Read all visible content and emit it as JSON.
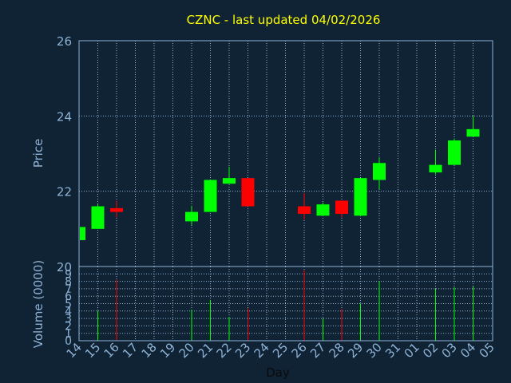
{
  "chart_data": {
    "type": "candlestick",
    "title": "CZNC - last updated 04/02/2026",
    "xlabel": "Day",
    "price_panel": {
      "ylabel": "Price",
      "ylim": [
        20,
        26
      ],
      "yticks": [
        "20",
        "22",
        "24",
        "26"
      ]
    },
    "volume_panel": {
      "ylabel": "Volume (0000)",
      "ylim": [
        0,
        10
      ],
      "yticks": [
        "0",
        "1",
        "2",
        "3",
        "4",
        "5",
        "6",
        "7",
        "8",
        "9",
        "10"
      ]
    },
    "x_labels": [
      "14",
      "15",
      "16",
      "17",
      "18",
      "19",
      "20",
      "21",
      "22",
      "23",
      "24",
      "25",
      "26",
      "27",
      "28",
      "29",
      "30",
      "31",
      "01",
      "02",
      "03",
      "04",
      "05"
    ],
    "candles": [
      {
        "day": "14",
        "open": 20.7,
        "high": 21.1,
        "low": 20.7,
        "close": 21.05,
        "volume": 0
      },
      {
        "day": "15",
        "open": 21.0,
        "high": 21.65,
        "low": 21.0,
        "close": 21.6,
        "volume": 4.0
      },
      {
        "day": "16",
        "open": 21.55,
        "high": 21.75,
        "low": 21.3,
        "close": 21.45,
        "volume": 8.2
      },
      {
        "day": "20",
        "open": 21.2,
        "high": 21.6,
        "low": 21.1,
        "close": 21.45,
        "volume": 4.2
      },
      {
        "day": "21",
        "open": 21.45,
        "high": 22.3,
        "low": 21.45,
        "close": 22.3,
        "volume": 5.5
      },
      {
        "day": "22",
        "open": 22.2,
        "high": 22.65,
        "low": 22.2,
        "close": 22.35,
        "volume": 3.2
      },
      {
        "day": "23",
        "open": 22.35,
        "high": 22.35,
        "low": 21.6,
        "close": 21.6,
        "volume": 4.4
      },
      {
        "day": "26",
        "open": 21.6,
        "high": 21.95,
        "low": 21.25,
        "close": 21.4,
        "volume": 9.5
      },
      {
        "day": "27",
        "open": 21.35,
        "high": 21.7,
        "low": 21.35,
        "close": 21.65,
        "volume": 3.0
      },
      {
        "day": "28",
        "open": 21.75,
        "high": 21.75,
        "low": 21.3,
        "close": 21.4,
        "volume": 4.3
      },
      {
        "day": "29",
        "open": 21.35,
        "high": 22.35,
        "low": 21.35,
        "close": 22.35,
        "volume": 5.0
      },
      {
        "day": "30",
        "open": 22.3,
        "high": 22.9,
        "low": 22.05,
        "close": 22.75,
        "volume": 8.0
      },
      {
        "day": "02",
        "open": 22.5,
        "high": 23.1,
        "low": 22.45,
        "close": 22.7,
        "volume": 7.0
      },
      {
        "day": "03",
        "open": 22.7,
        "high": 23.4,
        "low": 22.7,
        "close": 23.35,
        "volume": 7.2
      },
      {
        "day": "04",
        "open": 23.45,
        "high": 24.0,
        "low": 23.45,
        "close": 23.65,
        "volume": 7.3
      }
    ],
    "colors": {
      "background": "#0f2335",
      "axis": "#8fb3d5",
      "grid": "#8fb3d5",
      "title": "#ffff00",
      "label": "#8fb3d5",
      "up": "#00ff00",
      "down": "#ff0000"
    },
    "grid": true
  }
}
